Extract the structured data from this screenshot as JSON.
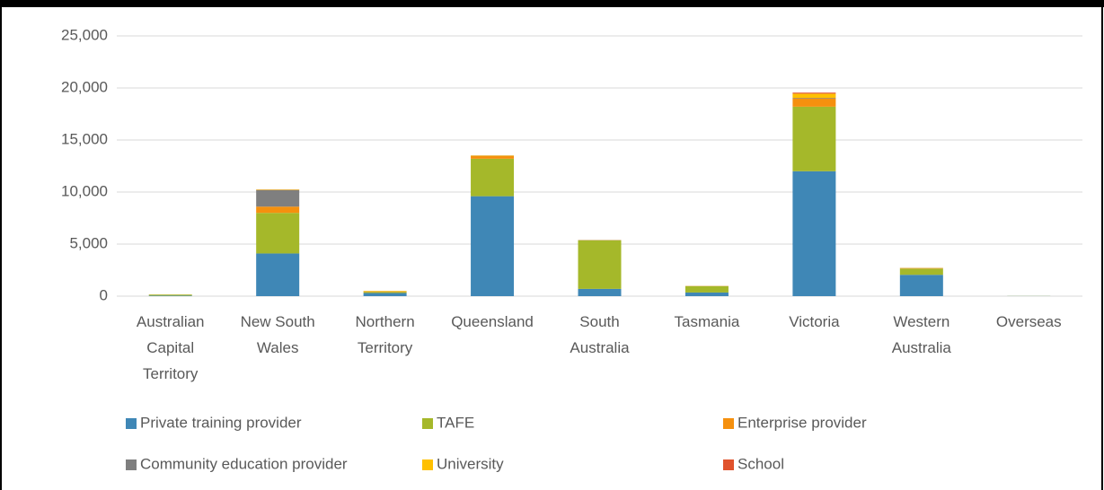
{
  "chart_data": {
    "type": "stacked_bar",
    "categories": [
      "Australian Capital Territory",
      "New South Wales",
      "Northern Territory",
      "Queensland",
      "South Australia",
      "Tasmania",
      "Victoria",
      "Western Australia",
      "Overseas"
    ],
    "series": [
      {
        "name": "Private training provider",
        "color": "#3f87b6",
        "values": [
          50,
          4100,
          300,
          9600,
          700,
          350,
          12000,
          2050,
          10
        ]
      },
      {
        "name": "TAFE",
        "color": "#a5b82a",
        "values": [
          100,
          3900,
          100,
          3600,
          4650,
          600,
          6200,
          600,
          10
        ]
      },
      {
        "name": "Enterprise provider",
        "color": "#f5900e",
        "values": [
          10,
          600,
          50,
          250,
          20,
          20,
          800,
          50,
          0
        ]
      },
      {
        "name": "Community education provider",
        "color": "#7f7f7f",
        "values": [
          0,
          1600,
          10,
          20,
          20,
          10,
          50,
          10,
          0
        ]
      },
      {
        "name": "University",
        "color": "#ffc000",
        "values": [
          0,
          50,
          50,
          50,
          10,
          10,
          400,
          10,
          0
        ]
      },
      {
        "name": "School",
        "color": "#e0522c",
        "values": [
          0,
          10,
          0,
          10,
          0,
          0,
          100,
          0,
          0
        ]
      }
    ],
    "ylim": [
      0,
      25000
    ],
    "yticks": [
      0,
      {
        "value": 5000,
        "label": "5,000"
      },
      {
        "value": 10000,
        "label": "10,000"
      },
      {
        "value": 15000,
        "label": "15,000"
      },
      {
        "value": 20000,
        "label": "20,000"
      },
      {
        "value": 25000,
        "label": "25,000"
      }
    ],
    "grid": true
  }
}
